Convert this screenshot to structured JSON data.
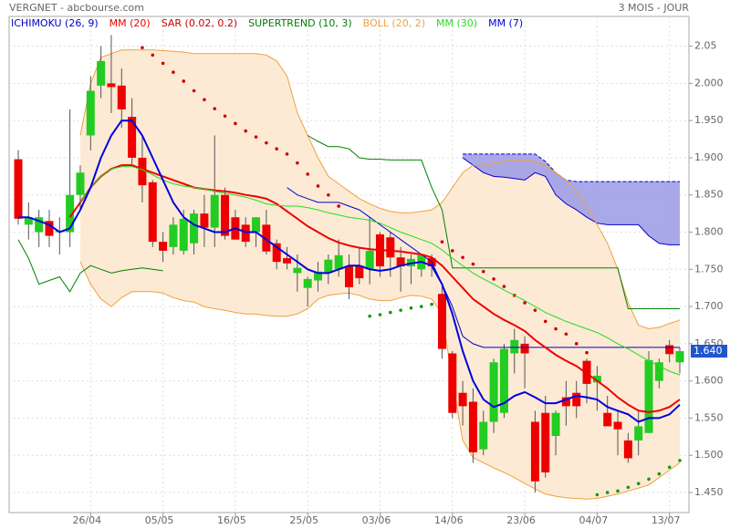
{
  "chart_data": {
    "type": "candlestick",
    "title": "VERGNET - abcbourse.com",
    "period": "3 MOIS - JOUR",
    "categories": [
      null,
      null,
      null,
      null,
      null,
      null,
      null,
      "26/04",
      null,
      null,
      null,
      null,
      null,
      null,
      "05/05",
      null,
      null,
      null,
      null,
      null,
      null,
      "16/05",
      null,
      null,
      null,
      null,
      null,
      null,
      "25/05",
      null,
      null,
      null,
      null,
      null,
      null,
      "03/06",
      null,
      null,
      null,
      null,
      null,
      null,
      "14/06",
      null,
      null,
      null,
      null,
      null,
      null,
      "23/06",
      null,
      null,
      null,
      null,
      null,
      null,
      "04/07",
      null,
      null,
      null,
      null,
      null,
      null,
      "13/07",
      null
    ],
    "open": [
      1.898,
      1.81,
      1.8,
      1.815,
      1.8,
      1.8,
      1.85,
      1.93,
      1.997,
      2.0,
      1.997,
      1.955,
      1.9,
      1.867,
      1.787,
      1.78,
      1.775,
      1.785,
      1.825,
      1.806,
      1.85,
      1.82,
      1.81,
      1.8,
      1.81,
      1.785,
      1.765,
      1.745,
      1.725,
      1.735,
      1.745,
      1.75,
      1.754,
      1.755,
      1.75,
      1.797,
      1.793,
      1.766,
      1.754,
      1.75,
      1.765,
      1.717,
      1.637,
      1.584,
      1.572,
      1.508,
      1.545,
      1.557,
      1.637,
      1.65,
      1.545,
      1.557,
      1.526,
      1.578,
      1.584,
      1.627,
      1.598,
      1.557,
      1.545,
      1.52,
      1.52,
      1.53,
      1.6,
      1.648,
      1.625
    ],
    "high": [
      1.91,
      1.84,
      1.83,
      1.83,
      1.82,
      1.965,
      1.89,
      2.01,
      2.05,
      2.065,
      2.02,
      1.98,
      1.93,
      1.87,
      1.8,
      1.82,
      1.83,
      1.83,
      1.85,
      1.93,
      1.86,
      1.83,
      1.82,
      1.82,
      1.83,
      1.79,
      1.78,
      1.77,
      1.74,
      1.76,
      1.77,
      1.79,
      1.77,
      1.78,
      1.82,
      1.8,
      1.8,
      1.78,
      1.77,
      1.77,
      1.77,
      1.73,
      1.64,
      1.6,
      1.59,
      1.56,
      1.63,
      1.65,
      1.67,
      1.66,
      1.56,
      1.58,
      1.56,
      1.6,
      1.6,
      1.63,
      1.62,
      1.58,
      1.56,
      1.53,
      1.56,
      1.64,
      1.63,
      1.655,
      1.645
    ],
    "low": [
      1.81,
      1.79,
      1.78,
      1.78,
      1.77,
      1.78,
      1.83,
      1.91,
      1.98,
      1.96,
      1.94,
      1.89,
      1.84,
      1.78,
      1.76,
      1.77,
      1.77,
      1.77,
      1.78,
      1.78,
      1.79,
      1.79,
      1.78,
      1.78,
      1.77,
      1.75,
      1.75,
      1.72,
      1.7,
      1.72,
      1.73,
      1.74,
      1.71,
      1.73,
      1.73,
      1.74,
      1.74,
      1.72,
      1.73,
      1.74,
      1.74,
      1.63,
      1.55,
      1.54,
      1.49,
      1.5,
      1.53,
      1.55,
      1.61,
      1.59,
      1.45,
      1.47,
      1.5,
      1.54,
      1.55,
      1.57,
      1.56,
      1.54,
      1.5,
      1.49,
      1.5,
      1.53,
      1.59,
      1.625,
      1.61
    ],
    "close": [
      1.818,
      1.82,
      1.82,
      1.795,
      1.802,
      1.85,
      1.88,
      1.99,
      2.03,
      1.995,
      1.965,
      1.9,
      1.863,
      1.787,
      1.775,
      1.81,
      1.818,
      1.825,
      1.806,
      1.85,
      1.795,
      1.79,
      1.787,
      1.82,
      1.774,
      1.76,
      1.758,
      1.752,
      1.737,
      1.747,
      1.763,
      1.769,
      1.726,
      1.738,
      1.775,
      1.754,
      1.766,
      1.754,
      1.764,
      1.769,
      1.754,
      1.643,
      1.557,
      1.566,
      1.504,
      1.545,
      1.625,
      1.643,
      1.655,
      1.637,
      1.465,
      1.477,
      1.557,
      1.566,
      1.566,
      1.596,
      1.607,
      1.539,
      1.535,
      1.496,
      1.539,
      1.628,
      1.625,
      1.636,
      1.64
    ],
    "up_color": "#22cc22",
    "down_color": "#ee0000",
    "indicators": [
      {
        "name": "ICHIMOKU (26, 9)",
        "color": "#0000cc",
        "kind": "cloud",
        "fill": "#9a9ae6",
        "line": [
          null,
          null,
          null,
          null,
          null,
          null,
          null,
          null,
          null,
          null,
          null,
          null,
          null,
          null,
          null,
          null,
          null,
          null,
          null,
          null,
          null,
          null,
          null,
          null,
          null,
          null,
          1.86,
          1.85,
          1.845,
          1.84,
          1.84,
          1.84,
          1.835,
          1.83,
          1.82,
          1.81,
          1.8,
          1.79,
          1.78,
          1.77,
          1.76,
          1.73,
          1.7,
          1.66,
          1.65,
          1.645,
          1.645,
          1.645,
          1.645,
          1.645,
          1.645,
          1.645,
          1.645,
          1.645,
          1.645,
          1.645,
          1.645,
          1.645,
          1.645,
          1.645,
          1.645,
          1.645,
          1.645,
          1.645,
          1.645
        ],
        "upper": [
          null,
          null,
          null,
          null,
          null,
          null,
          null,
          null,
          null,
          null,
          null,
          null,
          null,
          null,
          null,
          null,
          null,
          null,
          null,
          null,
          null,
          null,
          null,
          null,
          null,
          null,
          null,
          null,
          null,
          null,
          null,
          null,
          null,
          null,
          null,
          null,
          null,
          null,
          null,
          null,
          null,
          null,
          null,
          1.905,
          1.905,
          1.905,
          1.905,
          1.905,
          1.905,
          1.905,
          1.905,
          1.895,
          1.88,
          1.87,
          1.868,
          1.868,
          1.868,
          1.868,
          1.868,
          1.868,
          1.868,
          1.868,
          1.868,
          1.868,
          1.868
        ],
        "lower": [
          null,
          null,
          null,
          null,
          null,
          null,
          null,
          null,
          null,
          null,
          null,
          null,
          null,
          null,
          null,
          null,
          null,
          null,
          null,
          null,
          null,
          null,
          null,
          null,
          null,
          null,
          null,
          null,
          null,
          null,
          null,
          null,
          null,
          null,
          null,
          null,
          null,
          null,
          null,
          null,
          null,
          null,
          null,
          1.9,
          1.89,
          1.88,
          1.875,
          1.874,
          1.872,
          1.87,
          1.88,
          1.875,
          1.85,
          1.838,
          1.83,
          1.82,
          1.812,
          1.81,
          1.81,
          1.81,
          1.81,
          1.795,
          1.785,
          1.783,
          1.783
        ]
      },
      {
        "name": "MM (20)",
        "color": "#ee0000",
        "kind": "line",
        "bold": true,
        "values": [
          null,
          null,
          null,
          null,
          null,
          1.82,
          1.84,
          1.86,
          1.875,
          1.885,
          1.89,
          1.89,
          1.885,
          1.88,
          1.875,
          1.87,
          1.865,
          1.86,
          1.858,
          1.856,
          1.855,
          1.853,
          1.85,
          1.848,
          1.845,
          1.838,
          1.828,
          1.818,
          1.808,
          1.8,
          1.792,
          1.786,
          1.782,
          1.779,
          1.777,
          1.776,
          1.775,
          1.774,
          1.772,
          1.77,
          1.766,
          1.755,
          1.74,
          1.725,
          1.71,
          1.7,
          1.69,
          1.682,
          1.675,
          1.667,
          1.655,
          1.645,
          1.635,
          1.627,
          1.62,
          1.61,
          1.6,
          1.59,
          1.578,
          1.568,
          1.56,
          1.558,
          1.56,
          1.565,
          1.575
        ]
      },
      {
        "name": "SAR (0.02, 0.2)",
        "color": "#cc0000",
        "kind": "dots",
        "below_color": "#119911",
        "values": [
          null,
          null,
          null,
          null,
          null,
          null,
          null,
          null,
          null,
          null,
          null,
          null,
          2.048,
          2.038,
          2.027,
          2.015,
          2.003,
          1.99,
          1.978,
          1.966,
          1.956,
          1.946,
          1.936,
          1.928,
          1.92,
          1.912,
          1.905,
          1.893,
          1.878,
          1.862,
          1.85,
          1.835,
          null,
          null,
          1.687,
          1.689,
          1.692,
          1.695,
          1.698,
          1.7,
          1.703,
          1.787,
          1.775,
          1.766,
          1.757,
          1.747,
          1.737,
          1.727,
          1.715,
          1.705,
          1.695,
          1.68,
          1.67,
          1.663,
          1.65,
          1.638,
          1.447,
          1.45,
          1.452,
          1.457,
          1.462,
          1.468,
          1.475,
          1.484,
          1.493
        ]
      },
      {
        "name": "SUPERTREND (10, 3)",
        "color": "#008000",
        "kind": "line",
        "values": [
          1.79,
          1.765,
          1.73,
          1.735,
          1.74,
          1.72,
          1.745,
          1.755,
          1.75,
          1.745,
          1.748,
          1.75,
          1.752,
          1.75,
          1.748,
          null,
          null,
          null,
          null,
          null,
          null,
          null,
          null,
          null,
          null,
          null,
          null,
          null,
          1.93,
          1.922,
          1.915,
          1.915,
          1.912,
          1.9,
          1.898,
          1.898,
          1.897,
          1.897,
          1.897,
          1.897,
          1.86,
          1.83,
          1.752,
          1.752,
          1.752,
          1.752,
          1.752,
          1.752,
          1.752,
          1.752,
          1.752,
          1.752,
          1.752,
          1.752,
          1.752,
          1.752,
          1.752,
          1.752,
          1.752,
          1.697,
          1.697,
          1.697,
          1.697,
          1.697,
          1.697
        ]
      },
      {
        "name": "BOLL (20, 2)",
        "color": "#f0a040",
        "kind": "band",
        "fill": "#fde6cc",
        "upper": [
          null,
          null,
          null,
          null,
          null,
          null,
          1.93,
          2.0,
          2.035,
          2.04,
          2.045,
          2.045,
          2.045,
          2.045,
          2.044,
          2.043,
          2.042,
          2.04,
          2.04,
          2.04,
          2.04,
          2.04,
          2.04,
          2.04,
          2.038,
          2.03,
          2.01,
          1.96,
          1.93,
          1.9,
          1.875,
          1.865,
          1.855,
          1.845,
          1.838,
          1.832,
          1.828,
          1.826,
          1.826,
          1.828,
          1.83,
          1.84,
          1.86,
          1.88,
          1.89,
          1.89,
          1.893,
          1.895,
          1.897,
          1.897,
          1.895,
          1.89,
          1.88,
          1.87,
          1.855,
          1.835,
          1.81,
          1.785,
          1.75,
          1.705,
          1.675,
          1.67,
          1.672,
          1.677,
          1.682
        ],
        "lower": [
          null,
          null,
          null,
          null,
          null,
          null,
          1.76,
          1.73,
          1.71,
          1.7,
          1.712,
          1.72,
          1.72,
          1.72,
          1.718,
          1.712,
          1.708,
          1.706,
          1.7,
          1.697,
          1.695,
          1.692,
          1.69,
          1.69,
          1.688,
          1.687,
          1.687,
          1.69,
          1.697,
          1.71,
          1.715,
          1.717,
          1.718,
          1.715,
          1.71,
          1.708,
          1.708,
          1.712,
          1.715,
          1.714,
          1.71,
          1.69,
          1.6,
          1.52,
          1.497,
          1.49,
          1.483,
          1.477,
          1.47,
          1.462,
          1.455,
          1.448,
          1.445,
          1.443,
          1.442,
          1.441,
          1.442,
          1.445,
          1.448,
          1.452,
          1.456,
          1.46,
          1.47,
          1.48,
          1.49
        ]
      },
      {
        "name": "MM (30)",
        "color": "#22dd22",
        "kind": "line",
        "values": [
          null,
          null,
          null,
          null,
          null,
          null,
          1.84,
          1.86,
          1.875,
          1.885,
          1.888,
          1.888,
          1.884,
          1.877,
          1.87,
          1.865,
          1.862,
          1.86,
          1.858,
          1.855,
          1.852,
          1.85,
          1.847,
          1.843,
          1.838,
          1.836,
          1.835,
          1.835,
          1.833,
          1.83,
          1.826,
          1.823,
          1.82,
          1.818,
          1.816,
          1.812,
          1.806,
          1.8,
          1.795,
          1.79,
          1.785,
          1.776,
          1.765,
          1.755,
          1.745,
          1.737,
          1.73,
          1.722,
          1.715,
          1.708,
          1.7,
          1.692,
          1.686,
          1.68,
          1.675,
          1.67,
          1.665,
          1.658,
          1.65,
          1.643,
          1.635,
          1.627,
          1.62,
          1.613,
          1.608
        ]
      },
      {
        "name": "MM (7)",
        "color": "#0000dd",
        "kind": "line",
        "bold": true,
        "values": [
          1.82,
          1.82,
          1.815,
          1.81,
          1.8,
          1.805,
          1.83,
          1.86,
          1.9,
          1.93,
          1.95,
          1.95,
          1.93,
          1.9,
          1.87,
          1.84,
          1.82,
          1.81,
          1.805,
          1.8,
          1.8,
          1.805,
          1.8,
          1.8,
          1.79,
          1.78,
          1.77,
          1.76,
          1.75,
          1.745,
          1.745,
          1.75,
          1.755,
          1.755,
          1.75,
          1.748,
          1.75,
          1.755,
          1.758,
          1.76,
          1.755,
          1.73,
          1.69,
          1.64,
          1.6,
          1.575,
          1.565,
          1.57,
          1.58,
          1.585,
          1.578,
          1.57,
          1.57,
          1.575,
          1.58,
          1.578,
          1.575,
          1.565,
          1.56,
          1.555,
          1.545,
          1.55,
          1.55,
          1.555,
          1.568
        ]
      }
    ],
    "last_price": {
      "value": 1.64,
      "label": "1.640"
    },
    "last_price_color": "#2255cc",
    "ylim": [
      1.423,
      2.09
    ],
    "yticks": [
      2.05,
      {
        "value": 2,
        "label": "2.000"
      },
      {
        "value": 1.95,
        "label": "1.950"
      },
      {
        "value": 1.9,
        "label": "1.900"
      },
      {
        "value": 1.85,
        "label": "1.850"
      },
      {
        "value": 1.8,
        "label": "1.800"
      },
      {
        "value": 1.75,
        "label": "1.750"
      },
      {
        "value": 1.7,
        "label": "1.700"
      },
      {
        "value": 1.65,
        "label": "1.650"
      },
      {
        "value": 1.6,
        "label": "1.600"
      },
      {
        "value": 1.55,
        "label": "1.550"
      },
      {
        "value": 1.5,
        "label": "1.500"
      },
      {
        "value": 1.45,
        "label": "1.450"
      }
    ],
    "grid": true
  }
}
